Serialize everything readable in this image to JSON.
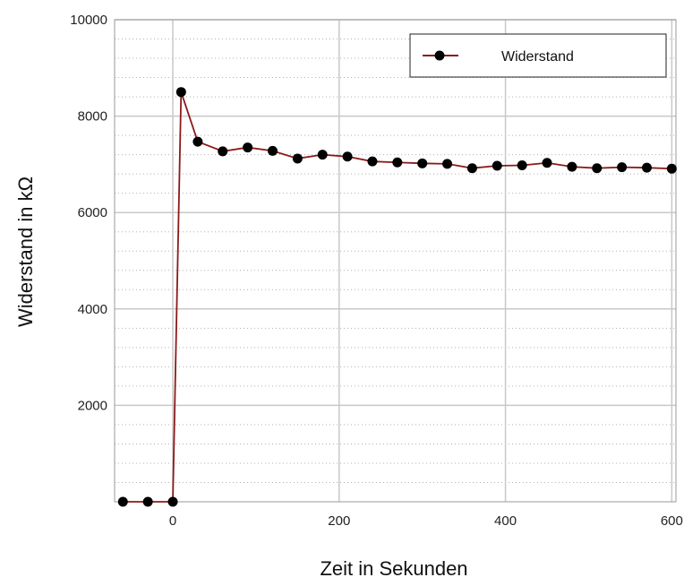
{
  "chart_data": {
    "type": "line",
    "xlabel": "Zeit in Sekunden",
    "ylabel": "Widerstand in kΩ",
    "xlim": [
      -70,
      605
    ],
    "ylim": [
      0,
      10000
    ],
    "x_ticks": [
      0,
      200,
      400,
      600
    ],
    "x_tick_labels": [
      "0",
      "200",
      "400",
      "600"
    ],
    "y_ticks": [
      2000,
      4000,
      6000,
      8000,
      10000
    ],
    "y_tick_labels": [
      "2000",
      "4000",
      "6000",
      "8000",
      "10000"
    ],
    "grid": true,
    "legend_position": "top-right",
    "series": [
      {
        "name": "Widerstand",
        "color": "#8b1a1a",
        "marker_color": "#000000",
        "x": [
          -60,
          -30,
          0,
          10,
          30,
          60,
          90,
          120,
          150,
          180,
          210,
          240,
          270,
          300,
          330,
          360,
          390,
          420,
          450,
          480,
          510,
          540,
          570,
          600
        ],
        "y": [
          0,
          0,
          0,
          8500,
          7470,
          7270,
          7350,
          7280,
          7120,
          7200,
          7160,
          7060,
          7040,
          7020,
          7010,
          6920,
          6970,
          6980,
          7030,
          6950,
          6920,
          6940,
          6930,
          6910
        ]
      }
    ]
  }
}
